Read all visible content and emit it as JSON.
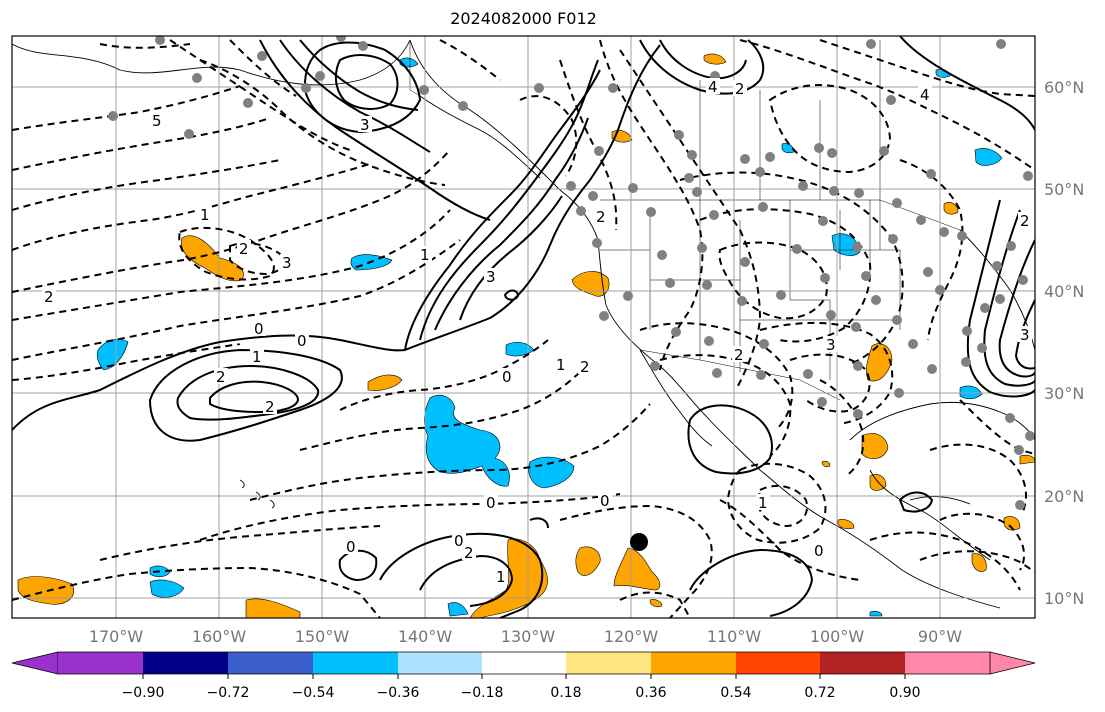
{
  "title": "2024082000 F012",
  "map": {
    "lat_labels": [
      "60°N",
      "50°N",
      "40°N",
      "30°N",
      "20°N",
      "10°N"
    ],
    "lon_labels": [
      "170°W",
      "160°W",
      "150°W",
      "140°W",
      "130°W",
      "120°W",
      "110°W",
      "100°W",
      "90°W"
    ],
    "grid_color": "#a0a0a0",
    "storm_marker": "tropical-cyclone-position"
  },
  "colorbar": {
    "ticks": [
      "−0.90",
      "−0.72",
      "−0.54",
      "−0.36",
      "−0.18",
      "0.18",
      "0.36",
      "0.54",
      "0.72",
      "0.90"
    ],
    "colors": [
      "#9932cc",
      "#00008b",
      "#3a5fcd",
      "#00bfff",
      "#aee2ff",
      "#ffffff",
      "#ffe680",
      "#ffa500",
      "#ff4500",
      "#b22222",
      "#ff88aa"
    ]
  },
  "contour_labels": [
    {
      "v": "-5"
    },
    {
      "v": "-3"
    },
    {
      "v": "-4"
    },
    {
      "v": "-2"
    },
    {
      "v": "-1"
    },
    {
      "v": "0"
    },
    {
      "v": "1"
    },
    {
      "v": "2"
    },
    {
      "v": "3"
    }
  ],
  "label_text": {
    "l1": "5",
    "l2": "3",
    "l3": "4",
    "l4": "2",
    "l5": "2",
    "l6": "3",
    "l7": "1",
    "l8": "2",
    "l9": "0",
    "l10": "0",
    "l11": "1",
    "l12": "2",
    "l13": "2",
    "l14": "3",
    "l15": "1",
    "l16": "0",
    "l17": "1",
    "l18": "2",
    "l19": "0",
    "l20": "2",
    "l21": "3",
    "l22": "0",
    "l23": "2",
    "l24": "1",
    "l25": "0",
    "l26": "0",
    "l27": "0",
    "l28": "2",
    "l29": "3",
    "l30": "4",
    "l31": "2",
    "l32": "1"
  }
}
